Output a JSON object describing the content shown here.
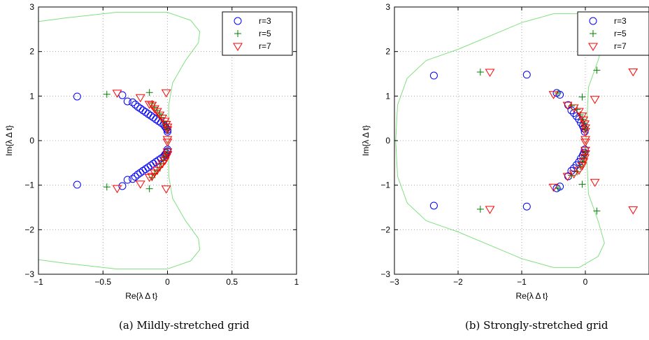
{
  "colors": {
    "r3": "#0000ff",
    "r5": "#008000",
    "r7": "#ff0000",
    "boundary": "#80e080",
    "grid": "#999999"
  },
  "chart_data": [
    {
      "type": "scatter",
      "caption": "(a)  Mildly-stretched grid",
      "xlabel": "Re{λ Δ t}",
      "ylabel": "Im{λ Δ t}",
      "xlim": [
        -1,
        1
      ],
      "ylim": [
        -3,
        3
      ],
      "xticks": [
        -1,
        -0.5,
        0,
        0.5,
        1
      ],
      "xtick_labels": [
        "−1",
        "−0.5",
        "0",
        "0.5",
        "1"
      ],
      "yticks": [
        -3,
        -2,
        -1,
        0,
        1,
        2,
        3
      ],
      "ytick_labels": [
        "−3",
        "−2",
        "−1",
        "0",
        "1",
        "2",
        "3"
      ],
      "grid": true,
      "legend_position": "top-right",
      "series": [
        {
          "name": "r=3",
          "marker": "circle",
          "color_key": "r3",
          "points": [
            [
              -0.7,
              0.99
            ],
            [
              -0.35,
              1.02
            ],
            [
              -0.31,
              0.88
            ],
            [
              -0.27,
              0.86
            ],
            [
              -0.25,
              0.81
            ],
            [
              -0.23,
              0.76
            ],
            [
              -0.21,
              0.72
            ],
            [
              -0.19,
              0.68
            ],
            [
              -0.17,
              0.64
            ],
            [
              -0.15,
              0.6
            ],
            [
              -0.13,
              0.56
            ],
            [
              -0.11,
              0.52
            ],
            [
              -0.09,
              0.48
            ],
            [
              -0.07,
              0.44
            ],
            [
              -0.05,
              0.4
            ],
            [
              -0.03,
              0.36
            ],
            [
              -0.02,
              0.32
            ],
            [
              -0.01,
              0.28
            ],
            [
              0.0,
              0.24
            ],
            [
              0.0,
              0.2
            ],
            [
              -0.7,
              -0.99
            ],
            [
              -0.35,
              -1.02
            ],
            [
              -0.31,
              -0.88
            ],
            [
              -0.27,
              -0.86
            ],
            [
              -0.25,
              -0.81
            ],
            [
              -0.23,
              -0.76
            ],
            [
              -0.21,
              -0.72
            ],
            [
              -0.19,
              -0.68
            ],
            [
              -0.17,
              -0.64
            ],
            [
              -0.15,
              -0.6
            ],
            [
              -0.13,
              -0.56
            ],
            [
              -0.11,
              -0.52
            ],
            [
              -0.09,
              -0.48
            ],
            [
              -0.07,
              -0.44
            ],
            [
              -0.05,
              -0.4
            ],
            [
              -0.03,
              -0.36
            ],
            [
              -0.02,
              -0.32
            ],
            [
              -0.01,
              -0.28
            ],
            [
              0.0,
              -0.24
            ],
            [
              0.0,
              -0.2
            ]
          ]
        },
        {
          "name": "r=5",
          "marker": "plus",
          "color_key": "r5",
          "points": [
            [
              -0.47,
              1.04
            ],
            [
              -0.14,
              1.08
            ],
            [
              -0.12,
              0.83
            ],
            [
              -0.1,
              0.75
            ],
            [
              -0.08,
              0.68
            ],
            [
              -0.06,
              0.6
            ],
            [
              -0.05,
              0.52
            ],
            [
              -0.03,
              0.44
            ],
            [
              -0.02,
              0.36
            ],
            [
              -0.01,
              0.3
            ],
            [
              0.0,
              0.25
            ],
            [
              -0.47,
              -1.04
            ],
            [
              -0.14,
              -1.08
            ],
            [
              -0.12,
              -0.83
            ],
            [
              -0.1,
              -0.75
            ],
            [
              -0.08,
              -0.68
            ],
            [
              -0.06,
              -0.6
            ],
            [
              -0.05,
              -0.52
            ],
            [
              -0.03,
              -0.44
            ],
            [
              -0.02,
              -0.36
            ],
            [
              -0.01,
              -0.3
            ],
            [
              0.0,
              -0.25
            ]
          ]
        },
        {
          "name": "r=7",
          "marker": "triangle-down",
          "color_key": "r7",
          "points": [
            [
              -0.39,
              1.07
            ],
            [
              -0.21,
              0.97
            ],
            [
              -0.14,
              0.82
            ],
            [
              -0.12,
              0.8
            ],
            [
              -0.1,
              0.72
            ],
            [
              -0.08,
              0.66
            ],
            [
              -0.06,
              0.58
            ],
            [
              -0.04,
              0.51
            ],
            [
              -0.02,
              0.44
            ],
            [
              -0.01,
              0.37
            ],
            [
              0.0,
              0.31
            ],
            [
              0.0,
              0.25
            ],
            [
              0.0,
              0.03
            ],
            [
              -0.01,
              1.08
            ],
            [
              -0.39,
              -1.07
            ],
            [
              -0.21,
              -0.97
            ],
            [
              -0.14,
              -0.82
            ],
            [
              -0.12,
              -0.8
            ],
            [
              -0.1,
              -0.72
            ],
            [
              -0.08,
              -0.66
            ],
            [
              -0.06,
              -0.58
            ],
            [
              -0.04,
              -0.51
            ],
            [
              -0.02,
              -0.44
            ],
            [
              -0.01,
              -0.37
            ],
            [
              0.0,
              -0.31
            ],
            [
              0.0,
              -0.25
            ],
            [
              0.0,
              -0.03
            ],
            [
              -0.01,
              -1.08
            ]
          ]
        }
      ],
      "boundary_curve": [
        [
          -1.2,
          2.6
        ],
        [
          -0.8,
          2.75
        ],
        [
          -0.4,
          2.88
        ],
        [
          0.0,
          2.88
        ],
        [
          0.18,
          2.7
        ],
        [
          0.25,
          2.45
        ],
        [
          0.24,
          2.2
        ],
        [
          0.14,
          1.8
        ],
        [
          0.04,
          1.3
        ],
        [
          0.01,
          0.8
        ],
        [
          0.01,
          0.0
        ],
        [
          0.01,
          -0.8
        ],
        [
          0.04,
          -1.3
        ],
        [
          0.14,
          -1.8
        ],
        [
          0.24,
          -2.2
        ],
        [
          0.25,
          -2.45
        ],
        [
          0.18,
          -2.7
        ],
        [
          0.0,
          -2.88
        ],
        [
          -0.4,
          -2.88
        ],
        [
          -0.8,
          -2.75
        ],
        [
          -1.2,
          -2.6
        ]
      ]
    },
    {
      "type": "scatter",
      "caption": "(b)  Strongly-stretched grid",
      "xlabel": "Re{λ Δ t}",
      "ylabel": "Im{λ Δ t}",
      "xlim": [
        -3,
        1
      ],
      "ylim": [
        -3,
        3
      ],
      "xticks": [
        -3,
        -2,
        -1,
        0
      ],
      "xtick_labels": [
        "−3",
        "−2",
        "−1",
        "0"
      ],
      "yticks": [
        -3,
        -2,
        -1,
        0,
        1,
        2,
        3
      ],
      "ytick_labels": [
        "−3",
        "−2",
        "−1",
        "0",
        "1",
        "2",
        "3"
      ],
      "grid": true,
      "legend_position": "top-right",
      "series": [
        {
          "name": "r=3",
          "marker": "circle",
          "color_key": "r3",
          "points": [
            [
              -2.38,
              1.46
            ],
            [
              -0.92,
              1.48
            ],
            [
              -0.45,
              1.07
            ],
            [
              -0.4,
              1.03
            ],
            [
              -0.27,
              0.8
            ],
            [
              -0.22,
              0.68
            ],
            [
              -0.18,
              0.62
            ],
            [
              -0.14,
              0.55
            ],
            [
              -0.1,
              0.48
            ],
            [
              -0.07,
              0.4
            ],
            [
              -0.04,
              0.33
            ],
            [
              -0.02,
              0.27
            ],
            [
              -0.01,
              0.2
            ],
            [
              -2.38,
              -1.46
            ],
            [
              -0.92,
              -1.48
            ],
            [
              -0.45,
              -1.07
            ],
            [
              -0.4,
              -1.03
            ],
            [
              -0.27,
              -0.8
            ],
            [
              -0.22,
              -0.68
            ],
            [
              -0.18,
              -0.62
            ],
            [
              -0.14,
              -0.55
            ],
            [
              -0.1,
              -0.48
            ],
            [
              -0.07,
              -0.4
            ],
            [
              -0.04,
              -0.33
            ],
            [
              -0.02,
              -0.27
            ],
            [
              -0.01,
              -0.2
            ]
          ]
        },
        {
          "name": "r=5",
          "marker": "plus",
          "color_key": "r5",
          "points": [
            [
              -1.65,
              1.54
            ],
            [
              0.18,
              1.58
            ],
            [
              -0.05,
              0.98
            ],
            [
              -0.43,
              1.07
            ],
            [
              -0.22,
              0.78
            ],
            [
              -0.13,
              0.7
            ],
            [
              -0.08,
              0.58
            ],
            [
              -0.05,
              0.48
            ],
            [
              -0.03,
              0.39
            ],
            [
              -0.01,
              0.31
            ],
            [
              0.0,
              0.24
            ],
            [
              -1.65,
              -1.54
            ],
            [
              0.18,
              -1.58
            ],
            [
              -0.05,
              -0.98
            ],
            [
              -0.43,
              -1.07
            ],
            [
              -0.22,
              -0.78
            ],
            [
              -0.13,
              -0.7
            ],
            [
              -0.08,
              -0.58
            ],
            [
              -0.05,
              -0.48
            ],
            [
              -0.03,
              -0.39
            ],
            [
              -0.01,
              -0.31
            ],
            [
              0.0,
              -0.24
            ]
          ]
        },
        {
          "name": "r=7",
          "marker": "triangle-down",
          "color_key": "r7",
          "points": [
            [
              -1.5,
              1.54
            ],
            [
              0.75,
              1.55
            ],
            [
              0.15,
              0.93
            ],
            [
              -0.5,
              1.04
            ],
            [
              -0.28,
              0.8
            ],
            [
              -0.18,
              0.74
            ],
            [
              -0.1,
              0.66
            ],
            [
              -0.05,
              0.56
            ],
            [
              -0.03,
              0.47
            ],
            [
              -0.01,
              0.38
            ],
            [
              0.0,
              0.29
            ],
            [
              0.0,
              0.21
            ],
            [
              0.0,
              0.03
            ],
            [
              -1.5,
              -1.54
            ],
            [
              0.75,
              -1.55
            ],
            [
              0.15,
              -0.93
            ],
            [
              -0.5,
              -1.04
            ],
            [
              -0.28,
              -0.8
            ],
            [
              -0.18,
              -0.74
            ],
            [
              -0.1,
              -0.66
            ],
            [
              -0.05,
              -0.56
            ],
            [
              -0.03,
              -0.47
            ],
            [
              -0.01,
              -0.38
            ],
            [
              0.0,
              -0.29
            ],
            [
              0.0,
              -0.21
            ],
            [
              0.0,
              -0.03
            ]
          ]
        }
      ],
      "boundary_curve": [
        [
          0.2,
          2.6
        ],
        [
          -0.1,
          2.85
        ],
        [
          -0.5,
          2.85
        ],
        [
          -1.0,
          2.65
        ],
        [
          -1.5,
          2.35
        ],
        [
          -2.0,
          2.05
        ],
        [
          -2.5,
          1.8
        ],
        [
          -2.8,
          1.4
        ],
        [
          -2.95,
          0.8
        ],
        [
          -2.98,
          0.0
        ],
        [
          -2.95,
          -0.8
        ],
        [
          -2.8,
          -1.4
        ],
        [
          -2.5,
          -1.8
        ],
        [
          -2.0,
          -2.05
        ],
        [
          -1.5,
          -2.35
        ],
        [
          -1.0,
          -2.65
        ],
        [
          -0.5,
          -2.85
        ],
        [
          -0.1,
          -2.85
        ],
        [
          0.2,
          -2.6
        ],
        [
          0.3,
          -2.3
        ],
        [
          0.2,
          -1.8
        ],
        [
          0.05,
          -1.2
        ],
        [
          0.01,
          0.0
        ],
        [
          0.05,
          1.2
        ],
        [
          0.2,
          1.8
        ],
        [
          0.3,
          2.3
        ],
        [
          0.2,
          2.6
        ]
      ]
    }
  ]
}
